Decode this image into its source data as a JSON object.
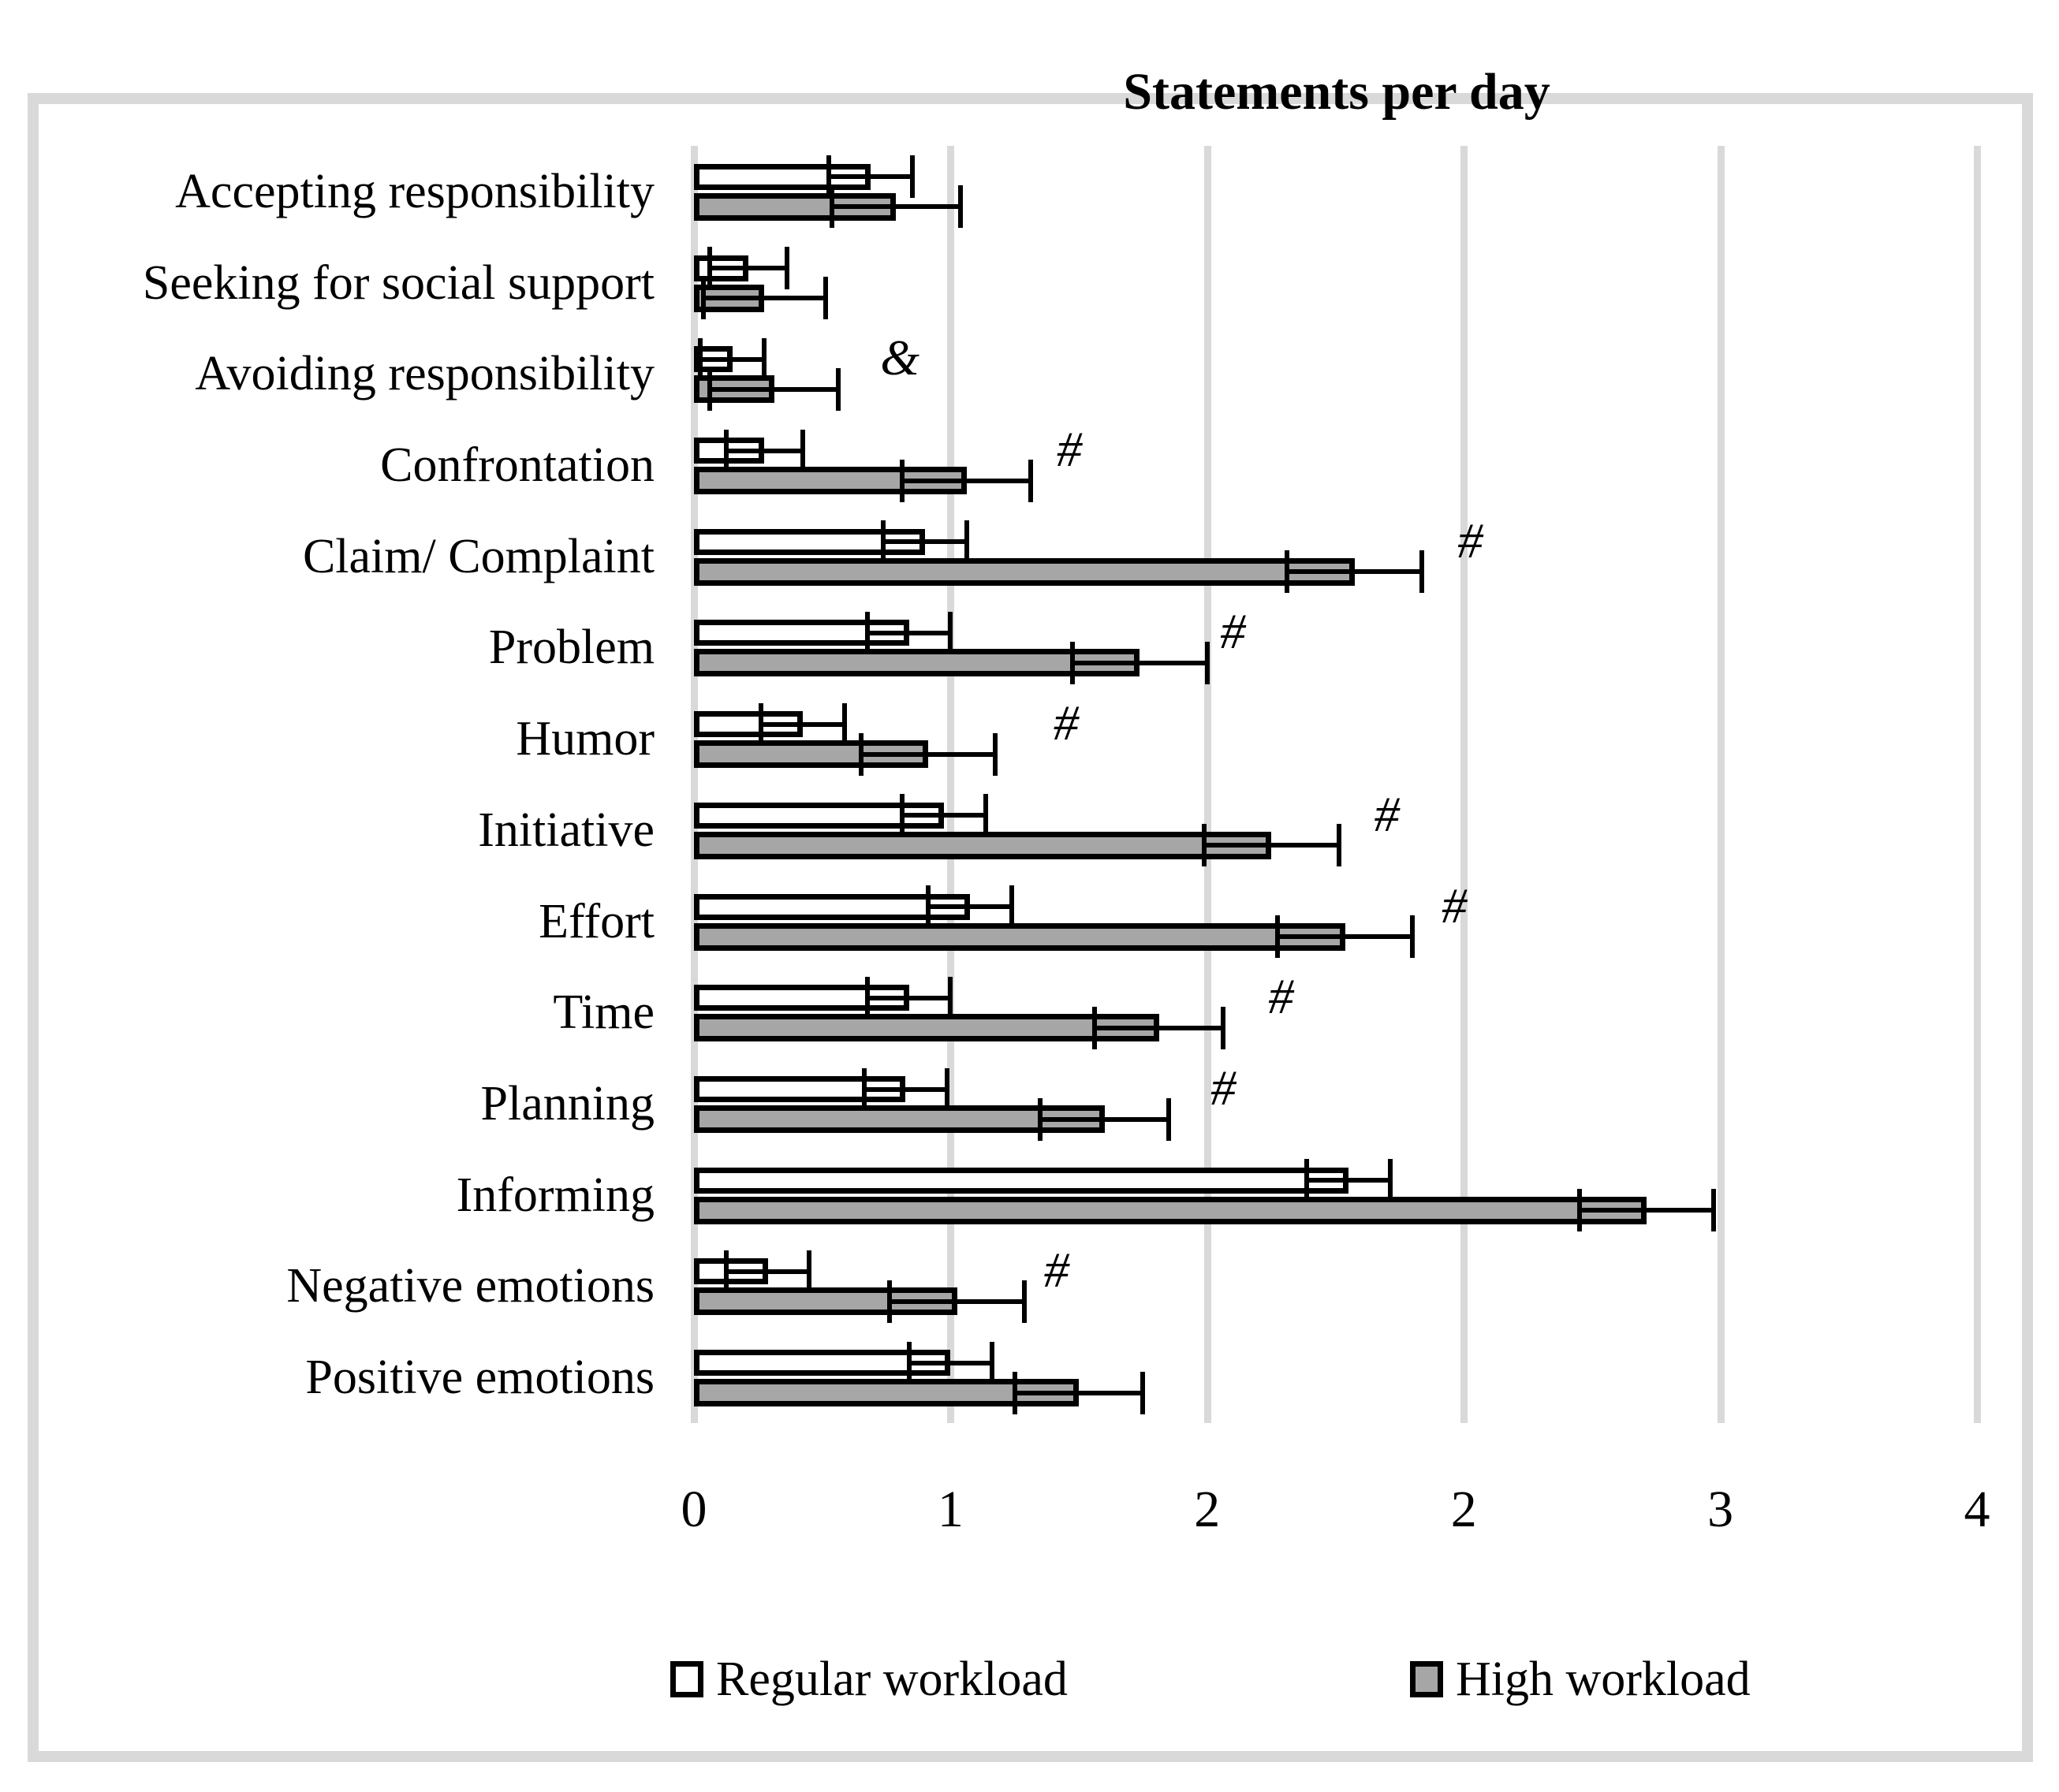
{
  "figure": {
    "background_color": "#ffffff",
    "frame_color": "#d9d9d9",
    "gridline_color": "#d9d9d9",
    "bar_outline_color": "#000000"
  },
  "chart_data": {
    "type": "bar",
    "orientation": "horizontal",
    "title": "Statements per day",
    "grid": true,
    "legend_position": "bottom",
    "categories": [
      "Accepting responsibility",
      "Seeking for social support",
      "Avoiding responsibility",
      "Confrontation",
      "Claim/ Complaint",
      "Problem",
      "Humor",
      "Initiative",
      "Effort",
      "Time",
      "Planning",
      "Informing",
      "Negative emotions",
      "Positive emotions"
    ],
    "series": [
      {
        "name": "Regular workload",
        "fill": "#ffffff",
        "values": [
          0.55,
          0.17,
          0.12,
          0.22,
          0.72,
          0.67,
          0.34,
          0.78,
          0.86,
          0.67,
          0.66,
          2.04,
          0.23,
          0.8
        ],
        "errors": [
          0.13,
          0.12,
          0.1,
          0.12,
          0.13,
          0.13,
          0.13,
          0.13,
          0.13,
          0.13,
          0.13,
          0.13,
          0.13,
          0.13
        ]
      },
      {
        "name": "High workload",
        "fill": "#a6a6a6",
        "values": [
          0.63,
          0.22,
          0.25,
          0.85,
          2.06,
          1.39,
          0.73,
          1.8,
          2.03,
          1.45,
          1.28,
          2.97,
          0.82,
          1.2
        ],
        "errors": [
          0.2,
          0.19,
          0.2,
          0.2,
          0.21,
          0.21,
          0.21,
          0.21,
          0.21,
          0.2,
          0.2,
          0.21,
          0.21,
          0.2
        ]
      }
    ],
    "annotations": [
      {
        "category_index": 2,
        "symbol": "&",
        "x": 0.63
      },
      {
        "category_index": 3,
        "symbol": "#",
        "x": 1.18
      },
      {
        "category_index": 4,
        "symbol": "#",
        "x": 2.43
      },
      {
        "category_index": 5,
        "symbol": "#",
        "x": 1.69
      },
      {
        "category_index": 6,
        "symbol": "#",
        "x": 1.17
      },
      {
        "category_index": 7,
        "symbol": "#",
        "x": 2.17
      },
      {
        "category_index": 8,
        "symbol": "#",
        "x": 2.38
      },
      {
        "category_index": 9,
        "symbol": "#",
        "x": 1.84
      },
      {
        "category_index": 10,
        "symbol": "#",
        "x": 1.66
      },
      {
        "category_index": 12,
        "symbol": "#",
        "x": 1.14
      }
    ],
    "x_axis": {
      "min": 0,
      "max": 4,
      "tick_labels": [
        "0",
        "1",
        "2",
        "2",
        "3",
        "4"
      ],
      "tick_values": [
        0,
        0.8,
        1.6,
        2.4,
        3.2,
        4.0
      ]
    }
  }
}
